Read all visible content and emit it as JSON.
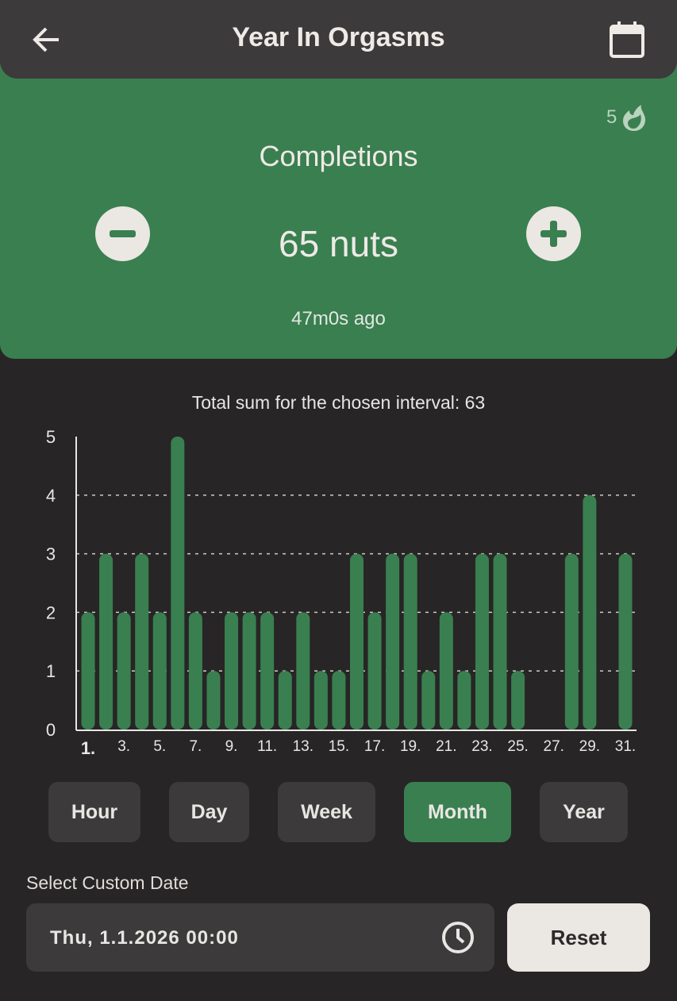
{
  "header": {
    "title": "Year In Orgasms",
    "back_icon": "arrow-left-icon",
    "calendar_icon": "calendar-icon"
  },
  "counter": {
    "streak": "5",
    "streak_icon": "flame-icon",
    "label": "Completions",
    "value": "65 nuts",
    "last": "47m0s ago",
    "minus_icon": "minus-icon",
    "plus_icon": "plus-icon",
    "accent": "#3a7f50"
  },
  "chart": {
    "total_label": "Total sum for the chosen interval: 63"
  },
  "chart_data": {
    "type": "bar",
    "categories": [
      "1.",
      "2.",
      "3.",
      "4.",
      "5.",
      "6.",
      "7.",
      "8.",
      "9.",
      "10.",
      "11.",
      "12.",
      "13.",
      "14.",
      "15.",
      "16.",
      "17.",
      "18.",
      "19.",
      "20.",
      "21.",
      "22.",
      "23.",
      "24.",
      "25.",
      "26.",
      "27.",
      "28.",
      "29.",
      "30.",
      "31."
    ],
    "tick_labels": [
      "1.",
      "3.",
      "5.",
      "7.",
      "9.",
      "11.",
      "13.",
      "15.",
      "17.",
      "19.",
      "21.",
      "23.",
      "25.",
      "27.",
      "29.",
      "31."
    ],
    "values": [
      2,
      3,
      2,
      3,
      2,
      5,
      2,
      1,
      2,
      2,
      2,
      1,
      2,
      1,
      1,
      3,
      2,
      3,
      3,
      1,
      2,
      1,
      3,
      3,
      1,
      0,
      0,
      3,
      4,
      0,
      3
    ],
    "ylim": [
      0,
      5
    ],
    "yticks": [
      "0",
      "1",
      "2",
      "3",
      "4",
      "5"
    ],
    "grid": "horizontal dashed",
    "color": "#3a7f50"
  },
  "intervals": {
    "items": [
      "Hour",
      "Day",
      "Week",
      "Month",
      "Year"
    ],
    "selected": "Month"
  },
  "custom_date": {
    "label": "Select Custom Date",
    "value": "Thu, 1.1.2026 00:00",
    "clock_icon": "clock-icon",
    "reset": "Reset"
  }
}
